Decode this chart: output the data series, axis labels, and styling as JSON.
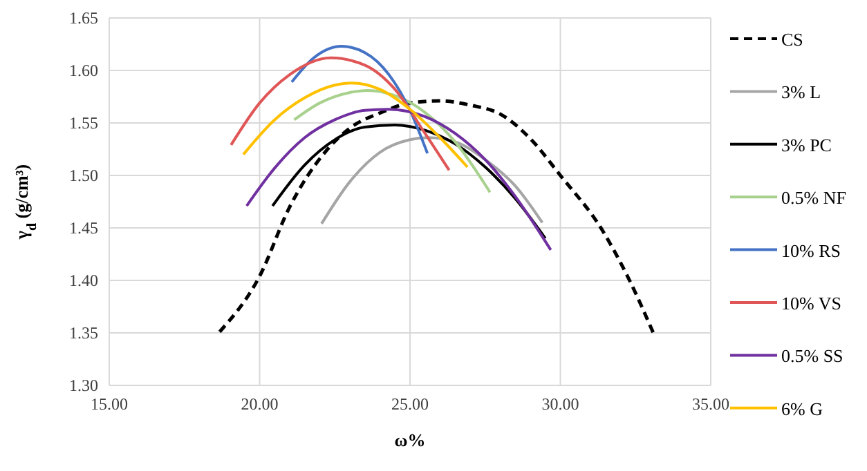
{
  "chart_data": {
    "type": "line",
    "xlabel": "ω%",
    "ylabel": "γ$_{d}$ (g/cm³)",
    "xlim": [
      15,
      35
    ],
    "xticks": [
      {
        "value": 15,
        "label": "15.00"
      },
      {
        "value": 20,
        "label": "20.00"
      },
      {
        "value": 25,
        "label": "25.00"
      },
      {
        "value": 30,
        "label": "30.00"
      },
      {
        "value": 35,
        "label": "35.00"
      }
    ],
    "ylim": [
      1.3,
      1.65
    ],
    "yticks": [
      {
        "value": 1.3,
        "label": "1.30"
      },
      {
        "value": 1.35,
        "label": "1.35"
      },
      {
        "value": 1.4,
        "label": "1.40"
      },
      {
        "value": 1.45,
        "label": "1.45"
      },
      {
        "value": 1.5,
        "label": "1.50"
      },
      {
        "value": 1.55,
        "label": "1.55"
      },
      {
        "value": 1.6,
        "label": "1.60"
      },
      {
        "value": 1.65,
        "label": "1.65"
      }
    ],
    "grid": true,
    "legend": "right",
    "marker": "none",
    "series": [
      {
        "name": "CS",
        "color": "#000000",
        "line_style": "dashed",
        "x": [
          18.67,
          20.0,
          21.0,
          22.2,
          23.0,
          24.05,
          25.0,
          26.0,
          27.0,
          28.03,
          29.0,
          30.0,
          31.39,
          32.3,
          33.15
        ],
        "values": [
          1.351,
          1.404,
          1.47,
          1.523,
          1.545,
          1.56,
          1.569,
          1.571,
          1.567,
          1.558,
          1.535,
          1.5,
          1.448,
          1.4,
          1.346
        ]
      },
      {
        "name": "3% L",
        "color": "#a5a5a5",
        "x": [
          22.06,
          23.0,
          24.0,
          25.0,
          25.6,
          26.5,
          27.5,
          28.5,
          29.4
        ],
        "values": [
          1.454,
          1.494,
          1.522,
          1.534,
          1.536,
          1.532,
          1.515,
          1.49,
          1.455
        ]
      },
      {
        "name": "3% PC",
        "color": "#000000",
        "x": [
          20.43,
          21.5,
          22.5,
          23.5,
          24.5,
          25.5,
          26.5,
          27.5,
          28.5,
          29.5
        ],
        "values": [
          1.471,
          1.51,
          1.534,
          1.546,
          1.548,
          1.543,
          1.53,
          1.508,
          1.478,
          1.44
        ]
      },
      {
        "name": "0.5% NF",
        "color": "#a9d18e",
        "x": [
          21.15,
          22.0,
          23.0,
          23.6,
          24.5,
          25.5,
          26.5,
          27.66
        ],
        "values": [
          1.553,
          1.569,
          1.579,
          1.581,
          1.576,
          1.56,
          1.532,
          1.484
        ]
      },
      {
        "name": "10% RS",
        "color": "#4472c4",
        "x": [
          21.07,
          21.8,
          22.72,
          23.5,
          24.3,
          25.0,
          25.58
        ],
        "values": [
          1.589,
          1.612,
          1.623,
          1.617,
          1.596,
          1.562,
          1.521
        ]
      },
      {
        "name": "10% VS",
        "color": "#e05656",
        "x": [
          19.05,
          20.0,
          21.0,
          22.37,
          23.5,
          24.5,
          25.5,
          26.3
        ],
        "values": [
          1.529,
          1.569,
          1.596,
          1.612,
          1.605,
          1.582,
          1.54,
          1.505
        ]
      },
      {
        "name": "0.5% SS",
        "color": "#7030a0",
        "x": [
          19.57,
          20.5,
          21.5,
          22.5,
          23.5,
          24.3,
          25.5,
          26.5,
          27.5,
          28.5,
          29.68
        ],
        "values": [
          1.471,
          1.507,
          1.536,
          1.553,
          1.562,
          1.563,
          1.556,
          1.54,
          1.515,
          1.48,
          1.429
        ]
      },
      {
        "name": "6% G",
        "color": "#ffc000",
        "x": [
          19.46,
          20.5,
          21.5,
          22.5,
          23.06,
          24.0,
          25.0,
          26.0,
          26.91
        ],
        "values": [
          1.52,
          1.553,
          1.574,
          1.586,
          1.588,
          1.582,
          1.563,
          1.536,
          1.508
        ]
      }
    ]
  }
}
